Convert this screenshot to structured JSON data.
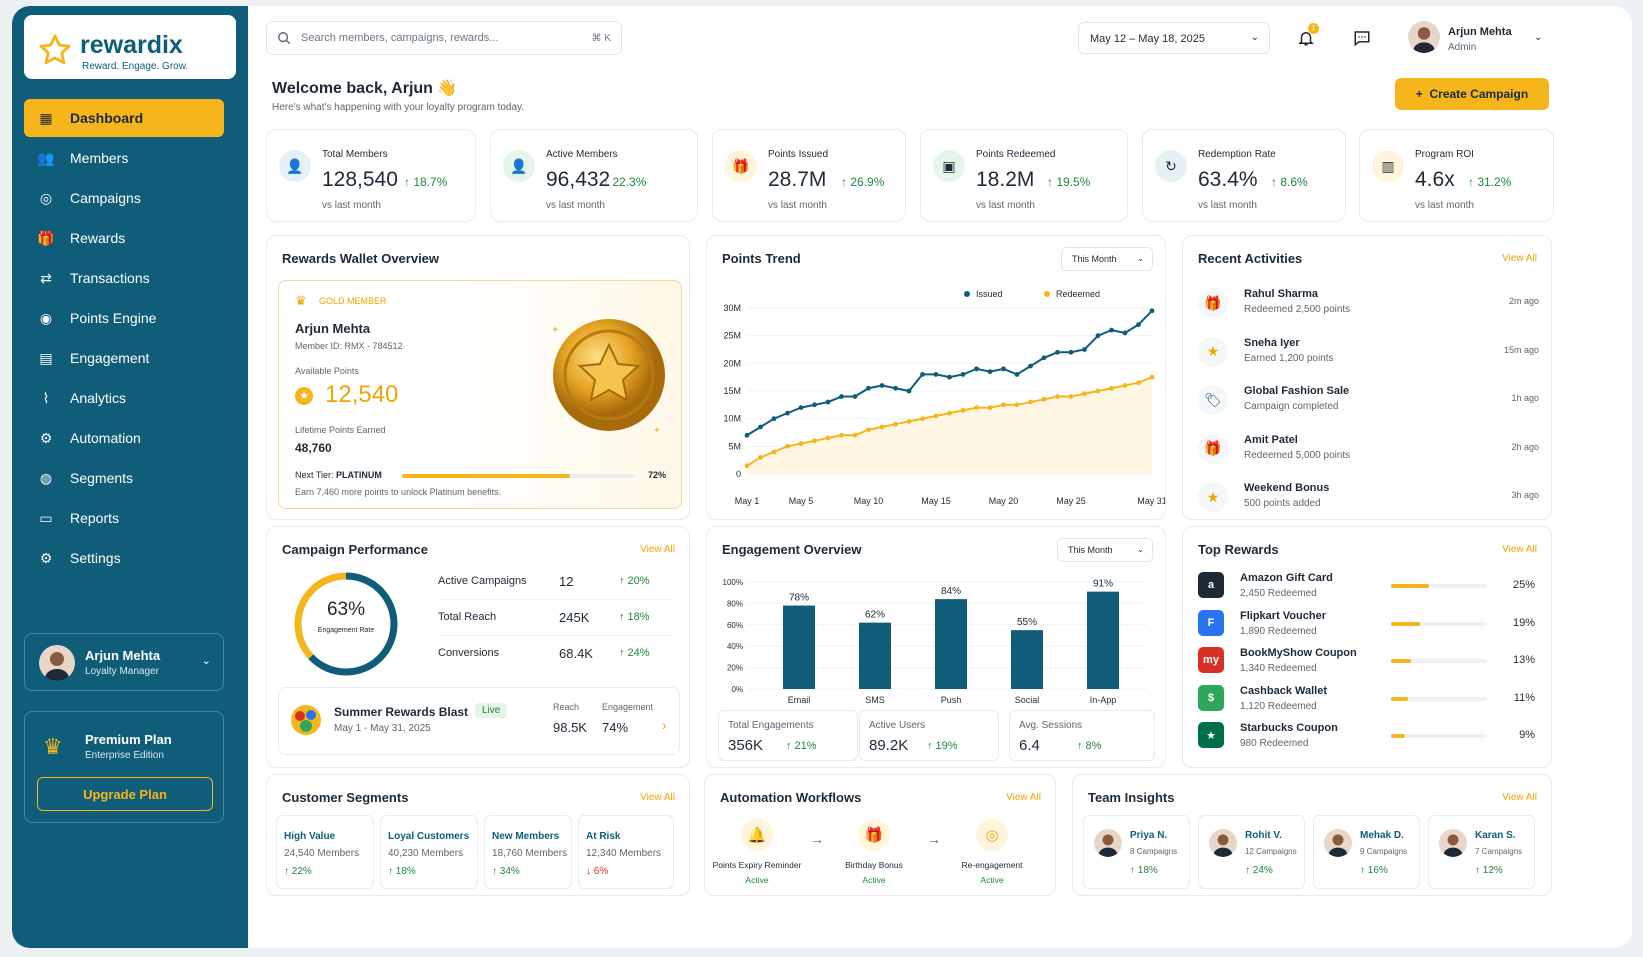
{
  "brand": {
    "name": "rewardix",
    "tagline": "Reward. Engage. Grow.",
    "accent": "#f7b51c",
    "primary": "#0f5d78"
  },
  "nav": [
    {
      "label": "Dashboard",
      "icon": "dashboard-icon",
      "active": true
    },
    {
      "label": "Members",
      "icon": "members-icon"
    },
    {
      "label": "Campaigns",
      "icon": "campaigns-icon"
    },
    {
      "label": "Rewards",
      "icon": "rewards-icon"
    },
    {
      "label": "Transactions",
      "icon": "transactions-icon"
    },
    {
      "label": "Points Engine",
      "icon": "points-engine-icon"
    },
    {
      "label": "Engagement",
      "icon": "engagement-icon"
    },
    {
      "label": "Analytics",
      "icon": "analytics-icon"
    },
    {
      "label": "Automation",
      "icon": "automation-icon"
    },
    {
      "label": "Segments",
      "icon": "segments-icon"
    },
    {
      "label": "Reports",
      "icon": "reports-icon"
    },
    {
      "label": "Settings",
      "icon": "settings-icon"
    }
  ],
  "sidebar_user": {
    "name": "Arjun Mehta",
    "role": "Loyalty Manager"
  },
  "plan": {
    "name": "Premium Plan",
    "edition": "Enterprise Edition",
    "button": "Upgrade Plan"
  },
  "header": {
    "search_placeholder": "Search members, campaigns, rewards...",
    "search_shortcut": "⌘ K",
    "date_range": "May 12 – May 18, 2025",
    "notif_count": "1",
    "user_name": "Arjun Mehta",
    "user_role": "Admin"
  },
  "welcome": {
    "title": "Welcome back, Arjun 👋",
    "subtitle": "Here's what's happening with your loyalty program today.",
    "create_button": "Create Campaign"
  },
  "kpis": [
    {
      "label": "Total Members",
      "value": "128,540",
      "change": "↑ 18.7%",
      "sub": "vs last month",
      "icon": "user-icon"
    },
    {
      "label": "Active Members",
      "value": "96,432",
      "change": "↑ 22.3%",
      "sub": "vs last month",
      "icon": "active-user-icon"
    },
    {
      "label": "Points Issued",
      "value": "28.7M",
      "change": "↑ 26.9%",
      "sub": "vs last month",
      "icon": "gift-icon"
    },
    {
      "label": "Points Redeemed",
      "value": "18.2M",
      "change": "↑ 19.5%",
      "sub": "vs last month",
      "icon": "redeem-icon"
    },
    {
      "label": "Redemption Rate",
      "value": "63.4%",
      "change": "↑ 8.6%",
      "sub": "vs last month",
      "icon": "refresh-icon"
    },
    {
      "label": "Program ROI",
      "value": "4.6x",
      "change": "↑ 31.2%",
      "sub": "vs last month",
      "icon": "roi-chart-icon"
    }
  ],
  "wallet": {
    "title": "Rewards Wallet Overview",
    "tier": "GOLD MEMBER",
    "name": "Arjun Mehta",
    "member_id": "Member ID: RMX - 784512",
    "avail_label": "Available Points",
    "avail_value": "12,540",
    "lifetime_label": "Lifetime Points Earned",
    "lifetime_value": "48,760",
    "next_tier_label": "Next Tier:",
    "next_tier": "PLATINUM",
    "progress": 72,
    "progress_label": "72%",
    "note": "Earn 7,460 more points to unlock Platinum benefits."
  },
  "trend": {
    "title": "Points Trend",
    "filter": "This Month"
  },
  "chart_data": {
    "type": "line",
    "x": [
      "May 1",
      "May 2",
      "May 3",
      "May 4",
      "May 5",
      "May 6",
      "May 7",
      "May 8",
      "May 9",
      "May 10",
      "May 11",
      "May 12",
      "May 13",
      "May 14",
      "May 15",
      "May 16",
      "May 17",
      "May 18",
      "May 19",
      "May 20",
      "May 21",
      "May 22",
      "May 23",
      "May 24",
      "May 25",
      "May 26",
      "May 27",
      "May 28",
      "May 29",
      "May 30",
      "May 31"
    ],
    "x_ticks": [
      "May 1",
      "May 5",
      "May 10",
      "May 15",
      "May 20",
      "May 25",
      "May 31"
    ],
    "y_ticks": [
      "0",
      "5M",
      "10M",
      "15M",
      "20M",
      "25M",
      "30M"
    ],
    "ylim": [
      0,
      30
    ],
    "series": [
      {
        "name": "Issued",
        "color": "#0f5d78",
        "values": [
          7,
          8.5,
          10,
          11,
          12,
          12.5,
          13,
          14,
          14,
          15.5,
          16,
          15.5,
          15,
          18,
          18,
          17.5,
          18,
          19,
          18.5,
          19,
          18,
          19.5,
          21,
          22,
          22,
          22.5,
          25,
          26,
          25.5,
          27,
          29.5
        ]
      },
      {
        "name": "Redeemed",
        "color": "#f7b51c",
        "values": [
          1.5,
          3,
          4,
          5,
          5.5,
          6,
          6.5,
          7,
          7,
          8,
          8.5,
          9,
          9.5,
          10,
          10.5,
          11,
          11.5,
          12,
          12,
          12.5,
          12.5,
          13,
          13.5,
          14,
          14,
          14.5,
          15,
          15.5,
          16,
          16.5,
          17.5
        ]
      }
    ]
  },
  "activities": {
    "title": "Recent Activities",
    "view_all": "View All",
    "items": [
      {
        "name": "Rahul Sharma",
        "detail": "Redeemed 2,500 points",
        "time": "2m ago",
        "icon": "gift-icon"
      },
      {
        "name": "Sneha Iyer",
        "detail": "Earned 1,200 points",
        "time": "15m ago",
        "icon": "star-coin-icon"
      },
      {
        "name": "Global Fashion Sale",
        "detail": "Campaign completed",
        "time": "1h ago",
        "icon": "tag-icon"
      },
      {
        "name": "Amit Patel",
        "detail": "Redeemed 5,000 points",
        "time": "2h ago",
        "icon": "gift-icon"
      },
      {
        "name": "Weekend Bonus",
        "detail": "500 points added",
        "time": "3h ago",
        "icon": "star-coin-icon"
      }
    ]
  },
  "campaign": {
    "title": "Campaign Performance",
    "view_all": "View All",
    "ring_value": "63%",
    "ring_fraction": 0.63,
    "ring_label": "Engagement Rate",
    "rows": [
      {
        "label": "Active Campaigns",
        "value": "12",
        "change": "↑ 20%"
      },
      {
        "label": "Total Reach",
        "value": "245K",
        "change": "↑ 18%"
      },
      {
        "label": "Conversions",
        "value": "68.4K",
        "change": "↑ 24%"
      }
    ],
    "featured": {
      "name": "Summer Rewards Blast",
      "status": "Live",
      "dates": "May 1 - May 31, 2025",
      "reach_label": "Reach",
      "reach": "98.5K",
      "eng_label": "Engagement",
      "eng": "74%"
    }
  },
  "engagement": {
    "title": "Engagement Overview",
    "filter": "This Month",
    "y_ticks": [
      "0%",
      "20%",
      "40%",
      "60%",
      "80%",
      "100%"
    ],
    "bars": [
      {
        "label": "Email",
        "value": 78,
        "text": "78%"
      },
      {
        "label": "SMS",
        "value": 62,
        "text": "62%"
      },
      {
        "label": "Push",
        "value": 84,
        "text": "84%"
      },
      {
        "label": "Social",
        "value": 55,
        "text": "55%"
      },
      {
        "label": "In-App",
        "value": 91,
        "text": "91%"
      }
    ],
    "stats": [
      {
        "label": "Total Engagements",
        "value": "356K",
        "change": "↑ 21%"
      },
      {
        "label": "Active Users",
        "value": "89.2K",
        "change": "↑ 19%"
      },
      {
        "label": "Avg. Sessions",
        "value": "6.4",
        "change": "↑ 8%"
      }
    ]
  },
  "top_rewards": {
    "title": "Top Rewards",
    "view_all": "View All",
    "items": [
      {
        "name": "Amazon Gift Card",
        "sub": "2,450 Redeemed",
        "pct": 25,
        "pct_text": "25%",
        "color": "#1d2a36",
        "mark": "a"
      },
      {
        "name": "Flipkart Voucher",
        "sub": "1,890 Redeemed",
        "pct": 19,
        "pct_text": "19%",
        "color": "#2874f0",
        "mark": "F"
      },
      {
        "name": "BookMyShow Coupon",
        "sub": "1,340 Redeemed",
        "pct": 13,
        "pct_text": "13%",
        "color": "#d93025",
        "mark": "my"
      },
      {
        "name": "Cashback Wallet",
        "sub": "1,120 Redeemed",
        "pct": 11,
        "pct_text": "11%",
        "color": "#2fa75a",
        "mark": "$"
      },
      {
        "name": "Starbucks Coupon",
        "sub": "980 Redeemed",
        "pct": 9,
        "pct_text": "9%",
        "color": "#00704a",
        "mark": "★"
      }
    ]
  },
  "segments": {
    "title": "Customer Segments",
    "view_all": "View All",
    "items": [
      {
        "name": "High Value",
        "count": "24,540 Members",
        "change": "↑ 22%",
        "dir": "pos"
      },
      {
        "name": "Loyal Customers",
        "count": "40,230 Members",
        "change": "↑ 18%",
        "dir": "pos"
      },
      {
        "name": "New Members",
        "count": "18,760 Members",
        "change": "↑ 34%",
        "dir": "pos"
      },
      {
        "name": "At Risk",
        "count": "12,340 Members",
        "change": "↓ 6%",
        "dir": "neg"
      }
    ]
  },
  "automation": {
    "title": "Automation Workflows",
    "view_all": "View All",
    "items": [
      {
        "name": "Points Expiry Reminder",
        "status": "Active",
        "icon": "bell-icon"
      },
      {
        "name": "Birthday Bonus",
        "status": "Active",
        "icon": "gift-icon"
      },
      {
        "name": "Re-engagement",
        "status": "Active",
        "icon": "target-icon"
      }
    ]
  },
  "team": {
    "title": "Team Insights",
    "view_all": "View All",
    "items": [
      {
        "name": "Priya N.",
        "campaigns": "8 Campaigns",
        "change": "↑ 18%"
      },
      {
        "name": "Rohit V.",
        "campaigns": "12 Campaigns",
        "change": "↑ 24%"
      },
      {
        "name": "Mehak D.",
        "campaigns": "9 Campaigns",
        "change": "↑ 16%"
      },
      {
        "name": "Karan S.",
        "campaigns": "7 Campaigns",
        "change": "↑ 12%"
      }
    ]
  }
}
